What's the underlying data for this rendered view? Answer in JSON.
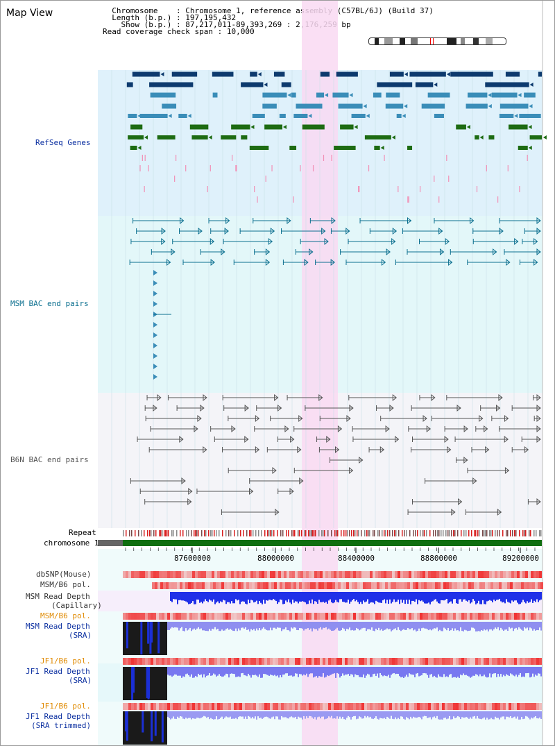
{
  "title": "Map View",
  "info": {
    "chromosome_label": "Chromosome",
    "chromosome_value": "Chromosome 1, reference assembly (C57BL/6J) (Build 37)",
    "length_label": "Length (b.p.)",
    "length_value": "197,195,432",
    "show_label": "Show (b.p.)",
    "show_value": "87,217,011-89,393,269 : 2,176,259 bp",
    "coverage_label": "Read coverage check span",
    "coverage_value": "10,000"
  },
  "tracks": {
    "refseq": "RefSeq Genes",
    "msm_bac": "MSM BAC end pairs",
    "b6n_bac": "B6N BAC end pairs",
    "repeat": "Repeat",
    "chromosome": "chromosome 1",
    "dbsnp": "dbSNP(Mouse)",
    "msm_b6_pol_1": "MSM/B6 pol.",
    "msm_depth_cap_1": "MSM Read Depth",
    "msm_depth_cap_2": "(Capillary)",
    "msm_b6_pol_2": "MSM/B6 pol.",
    "msm_depth_sra_1": "MSM Read Depth",
    "msm_depth_sra_2": "(SRA)",
    "jf1_b6_pol_1": "JF1/B6 pol.",
    "jf1_depth_sra_1": "JF1 Read Depth",
    "jf1_depth_sra_2": "(SRA)",
    "jf1_b6_pol_2": "JF1/B6 pol.",
    "jf1_depth_trim_1": "JF1 Read Depth",
    "jf1_depth_trim_2": "(SRA trimmed)"
  },
  "axis": {
    "ticks": [
      "87600000",
      "88000000",
      "88400000",
      "88800000",
      "89200000"
    ]
  },
  "colors": {
    "refseq_bg": "#dff1fb",
    "msm_bac_bg": "#e3f7f9",
    "b6n_bg": "#f4f4f8",
    "highlight": "#f9d9f2",
    "navy": "#0b2fa0",
    "teal": "#0b6f8f",
    "orange": "#e08a00",
    "gene_dark": "#0d3a6e",
    "gene_mid": "#3a8db8",
    "gene_green": "#1d6b12",
    "chrom_green": "#0f6e0f"
  }
}
